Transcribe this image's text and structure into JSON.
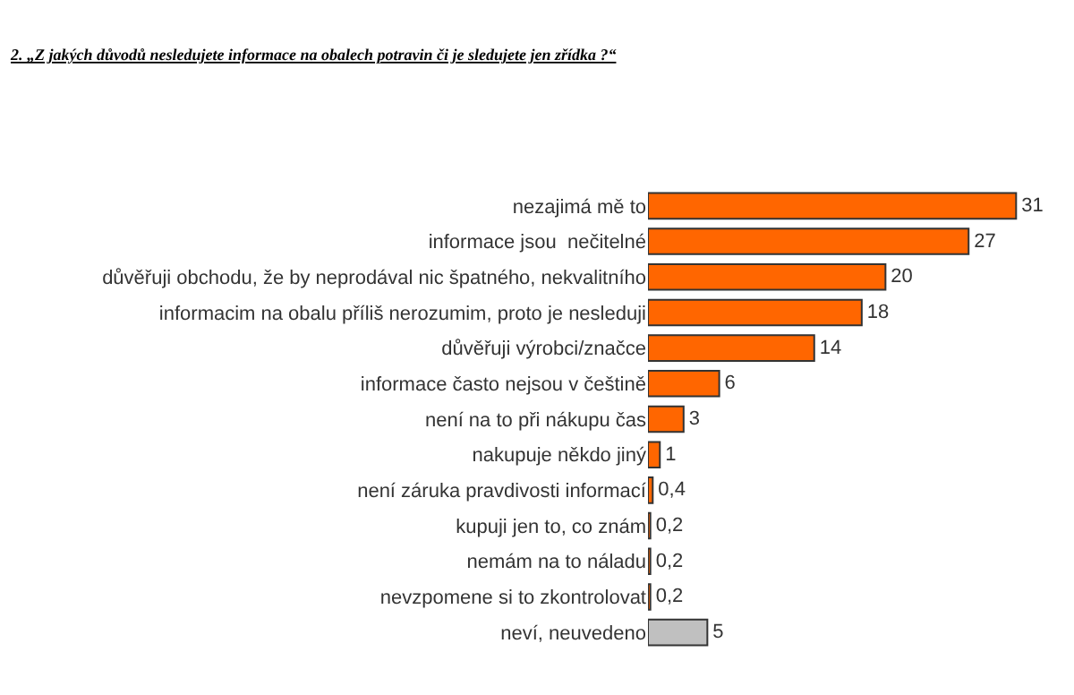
{
  "chart_data": {
    "type": "bar",
    "orientation": "horizontal",
    "title": "2. „Z jakých důvodů nesledujete informace na obalech potravin či je sledujete jen zřídka ?“",
    "categories": [
      "nezajimá mě to",
      "informace jsou  nečitelné",
      "důvěřuji obchodu, že by neprodával nic špatného, nekvalitního",
      "informacim na obalu příliš nerozumim, proto je nesleduji",
      "důvěřuji výrobci/značce",
      "informace často nejsou v češtině",
      "není na to při nákupu čas",
      "nakupuje někdo jiný",
      "není záruka pravdivosti informací",
      "kupuji jen to, co znám",
      "nemám na to náladu",
      "nevzpomene si to zkontrolovat",
      "neví, neuvedeno"
    ],
    "values": [
      31,
      27,
      20,
      18,
      14,
      6,
      3,
      1,
      0.4,
      0.2,
      0.2,
      0.2,
      5
    ],
    "value_labels": [
      "31",
      "27",
      "20",
      "18",
      "14",
      "6",
      "3",
      "1",
      "0,4",
      "0,2",
      "0,2",
      "0,2",
      "5"
    ],
    "colors": [
      "#ff6600",
      "#ff6600",
      "#ff6600",
      "#ff6600",
      "#ff6600",
      "#ff6600",
      "#ff6600",
      "#ff6600",
      "#ff6600",
      "#ff6600",
      "#ff6600",
      "#ff6600",
      "#c0c0c0"
    ]
  }
}
